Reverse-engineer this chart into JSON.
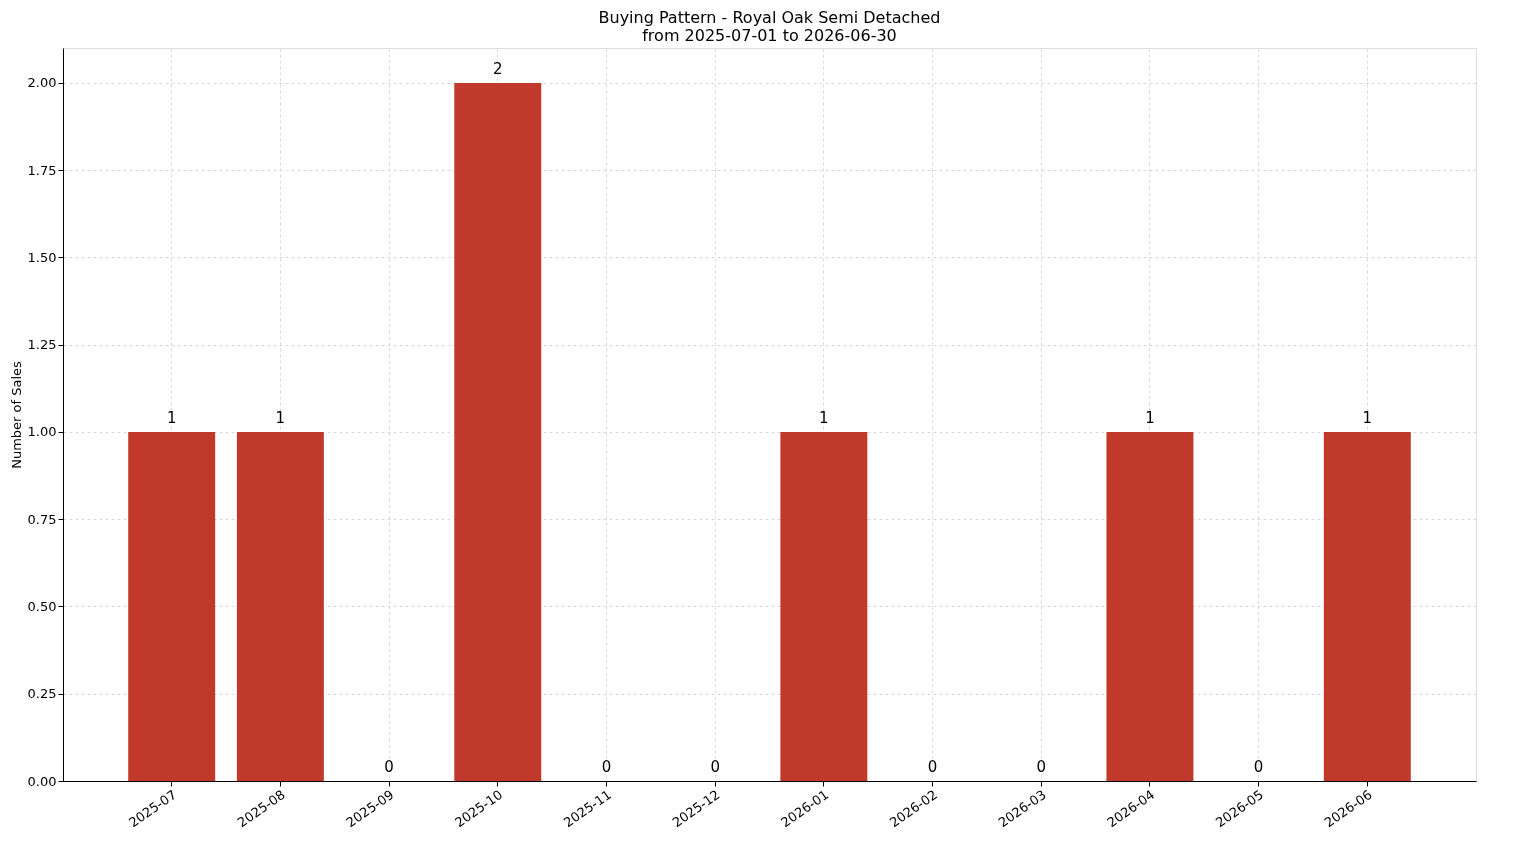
{
  "chart_data": {
    "type": "bar",
    "title": "Buying Pattern - Royal Oak Semi Detached\nfrom 2025-07-01 to 2026-06-30",
    "ylabel": "Number of Sales",
    "categories": [
      "2025-07",
      "2025-08",
      "2025-09",
      "2025-10",
      "2025-11",
      "2025-12",
      "2026-01",
      "2026-02",
      "2026-03",
      "2026-04",
      "2026-05",
      "2026-06"
    ],
    "values": [
      1,
      1,
      0,
      2,
      0,
      0,
      1,
      0,
      0,
      1,
      0,
      1
    ],
    "color": "#c0392b",
    "ylim": [
      0,
      2.1
    ],
    "yticks": [
      {
        "value": 0,
        "label": "0.00"
      },
      {
        "value": 0.25,
        "label": "0.25"
      },
      {
        "value": 0.5,
        "label": "0.50"
      },
      {
        "value": 0.75,
        "label": "0.75"
      },
      {
        "value": 1,
        "label": "1.00"
      },
      {
        "value": 1.25,
        "label": "1.25"
      },
      {
        "value": 1.5,
        "label": "1.50"
      },
      {
        "value": 1.75,
        "label": "1.75"
      },
      {
        "value": 2,
        "label": "2.00"
      }
    ],
    "grid": true,
    "data_labels": true
  }
}
